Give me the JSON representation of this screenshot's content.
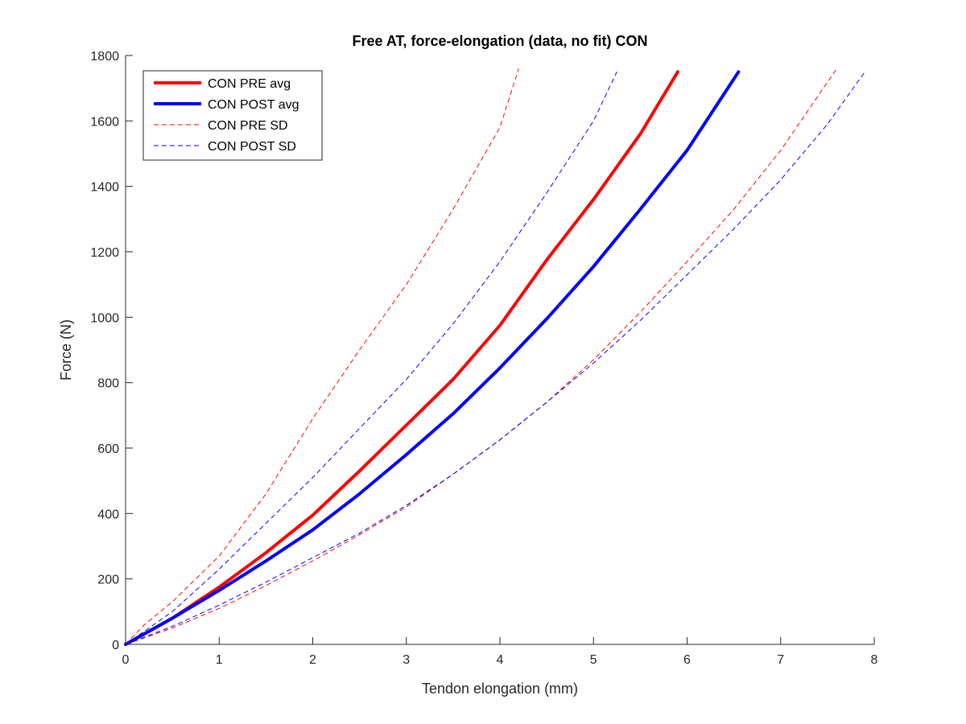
{
  "chart_data": {
    "type": "line",
    "title": "Free AT, force-elongation (data, no fit) CON",
    "xlabel": "Tendon elongation (mm)",
    "ylabel": "Force (N)",
    "xlim": [
      0,
      8
    ],
    "ylim": [
      0,
      1800
    ],
    "xticks": [
      "0",
      "1",
      "2",
      "3",
      "4",
      "5",
      "6",
      "7",
      "8"
    ],
    "yticks": [
      "0",
      "200",
      "400",
      "600",
      "800",
      "1000",
      "1200",
      "1400",
      "1600",
      "1800"
    ],
    "grid": false,
    "legend_position": "top-left",
    "series": [
      {
        "name": "CON PRE avg",
        "color": "#ff0000",
        "style": "solid",
        "x": [
          0,
          0.5,
          1,
          1.5,
          2,
          2.5,
          3,
          3.5,
          4,
          4.5,
          5,
          5.5,
          5.9
        ],
        "y": [
          0,
          80,
          175,
          280,
          395,
          530,
          670,
          810,
          975,
          1175,
          1360,
          1560,
          1750
        ]
      },
      {
        "name": "CON POST avg",
        "color": "#0000ff",
        "style": "solid",
        "x": [
          0,
          0.5,
          1,
          1.5,
          2,
          2.5,
          3,
          3.5,
          4,
          4.5,
          5,
          5.5,
          6,
          6.55
        ],
        "y": [
          0,
          80,
          165,
          255,
          350,
          460,
          580,
          705,
          845,
          995,
          1155,
          1330,
          1510,
          1750
        ]
      },
      {
        "name": "CON PRE SD",
        "color": "#ff0000",
        "style": "dashed",
        "sd_bounds": [
          {
            "x": [
              0,
              0.2,
              0.5,
              1,
              1.5,
              2,
              2.5,
              3,
              3.5,
              4,
              4.2
            ],
            "y": [
              0,
              60,
              130,
              270,
              460,
              690,
              900,
              1100,
              1330,
              1580,
              1760
            ]
          },
          {
            "x": [
              0,
              0.5,
              1,
              1.5,
              2,
              2.5,
              3,
              3.5,
              4,
              4.5,
              5,
              5.5,
              6,
              6.5,
              7,
              7.6
            ],
            "y": [
              0,
              50,
              110,
              180,
              255,
              335,
              420,
              520,
              625,
              740,
              870,
              1015,
              1170,
              1330,
              1510,
              1760
            ]
          }
        ]
      },
      {
        "name": "CON POST SD",
        "color": "#0000ff",
        "style": "dashed",
        "sd_bounds": [
          {
            "x": [
              0,
              0.2,
              0.5,
              1,
              1.5,
              2,
              2.5,
              3,
              3.5,
              4,
              4.5,
              5,
              5.25
            ],
            "y": [
              0,
              40,
              100,
              230,
              370,
              510,
              660,
              810,
              980,
              1170,
              1380,
              1600,
              1750
            ]
          },
          {
            "x": [
              0,
              0.5,
              1,
              1.5,
              2,
              2.5,
              3,
              3.5,
              4,
              4.5,
              5,
              5.5,
              6,
              6.5,
              7,
              7.5,
              7.9
            ],
            "y": [
              0,
              55,
              120,
              190,
              265,
              340,
              425,
              520,
              625,
              740,
              860,
              990,
              1130,
              1270,
              1420,
              1590,
              1750
            ]
          }
        ]
      }
    ]
  }
}
